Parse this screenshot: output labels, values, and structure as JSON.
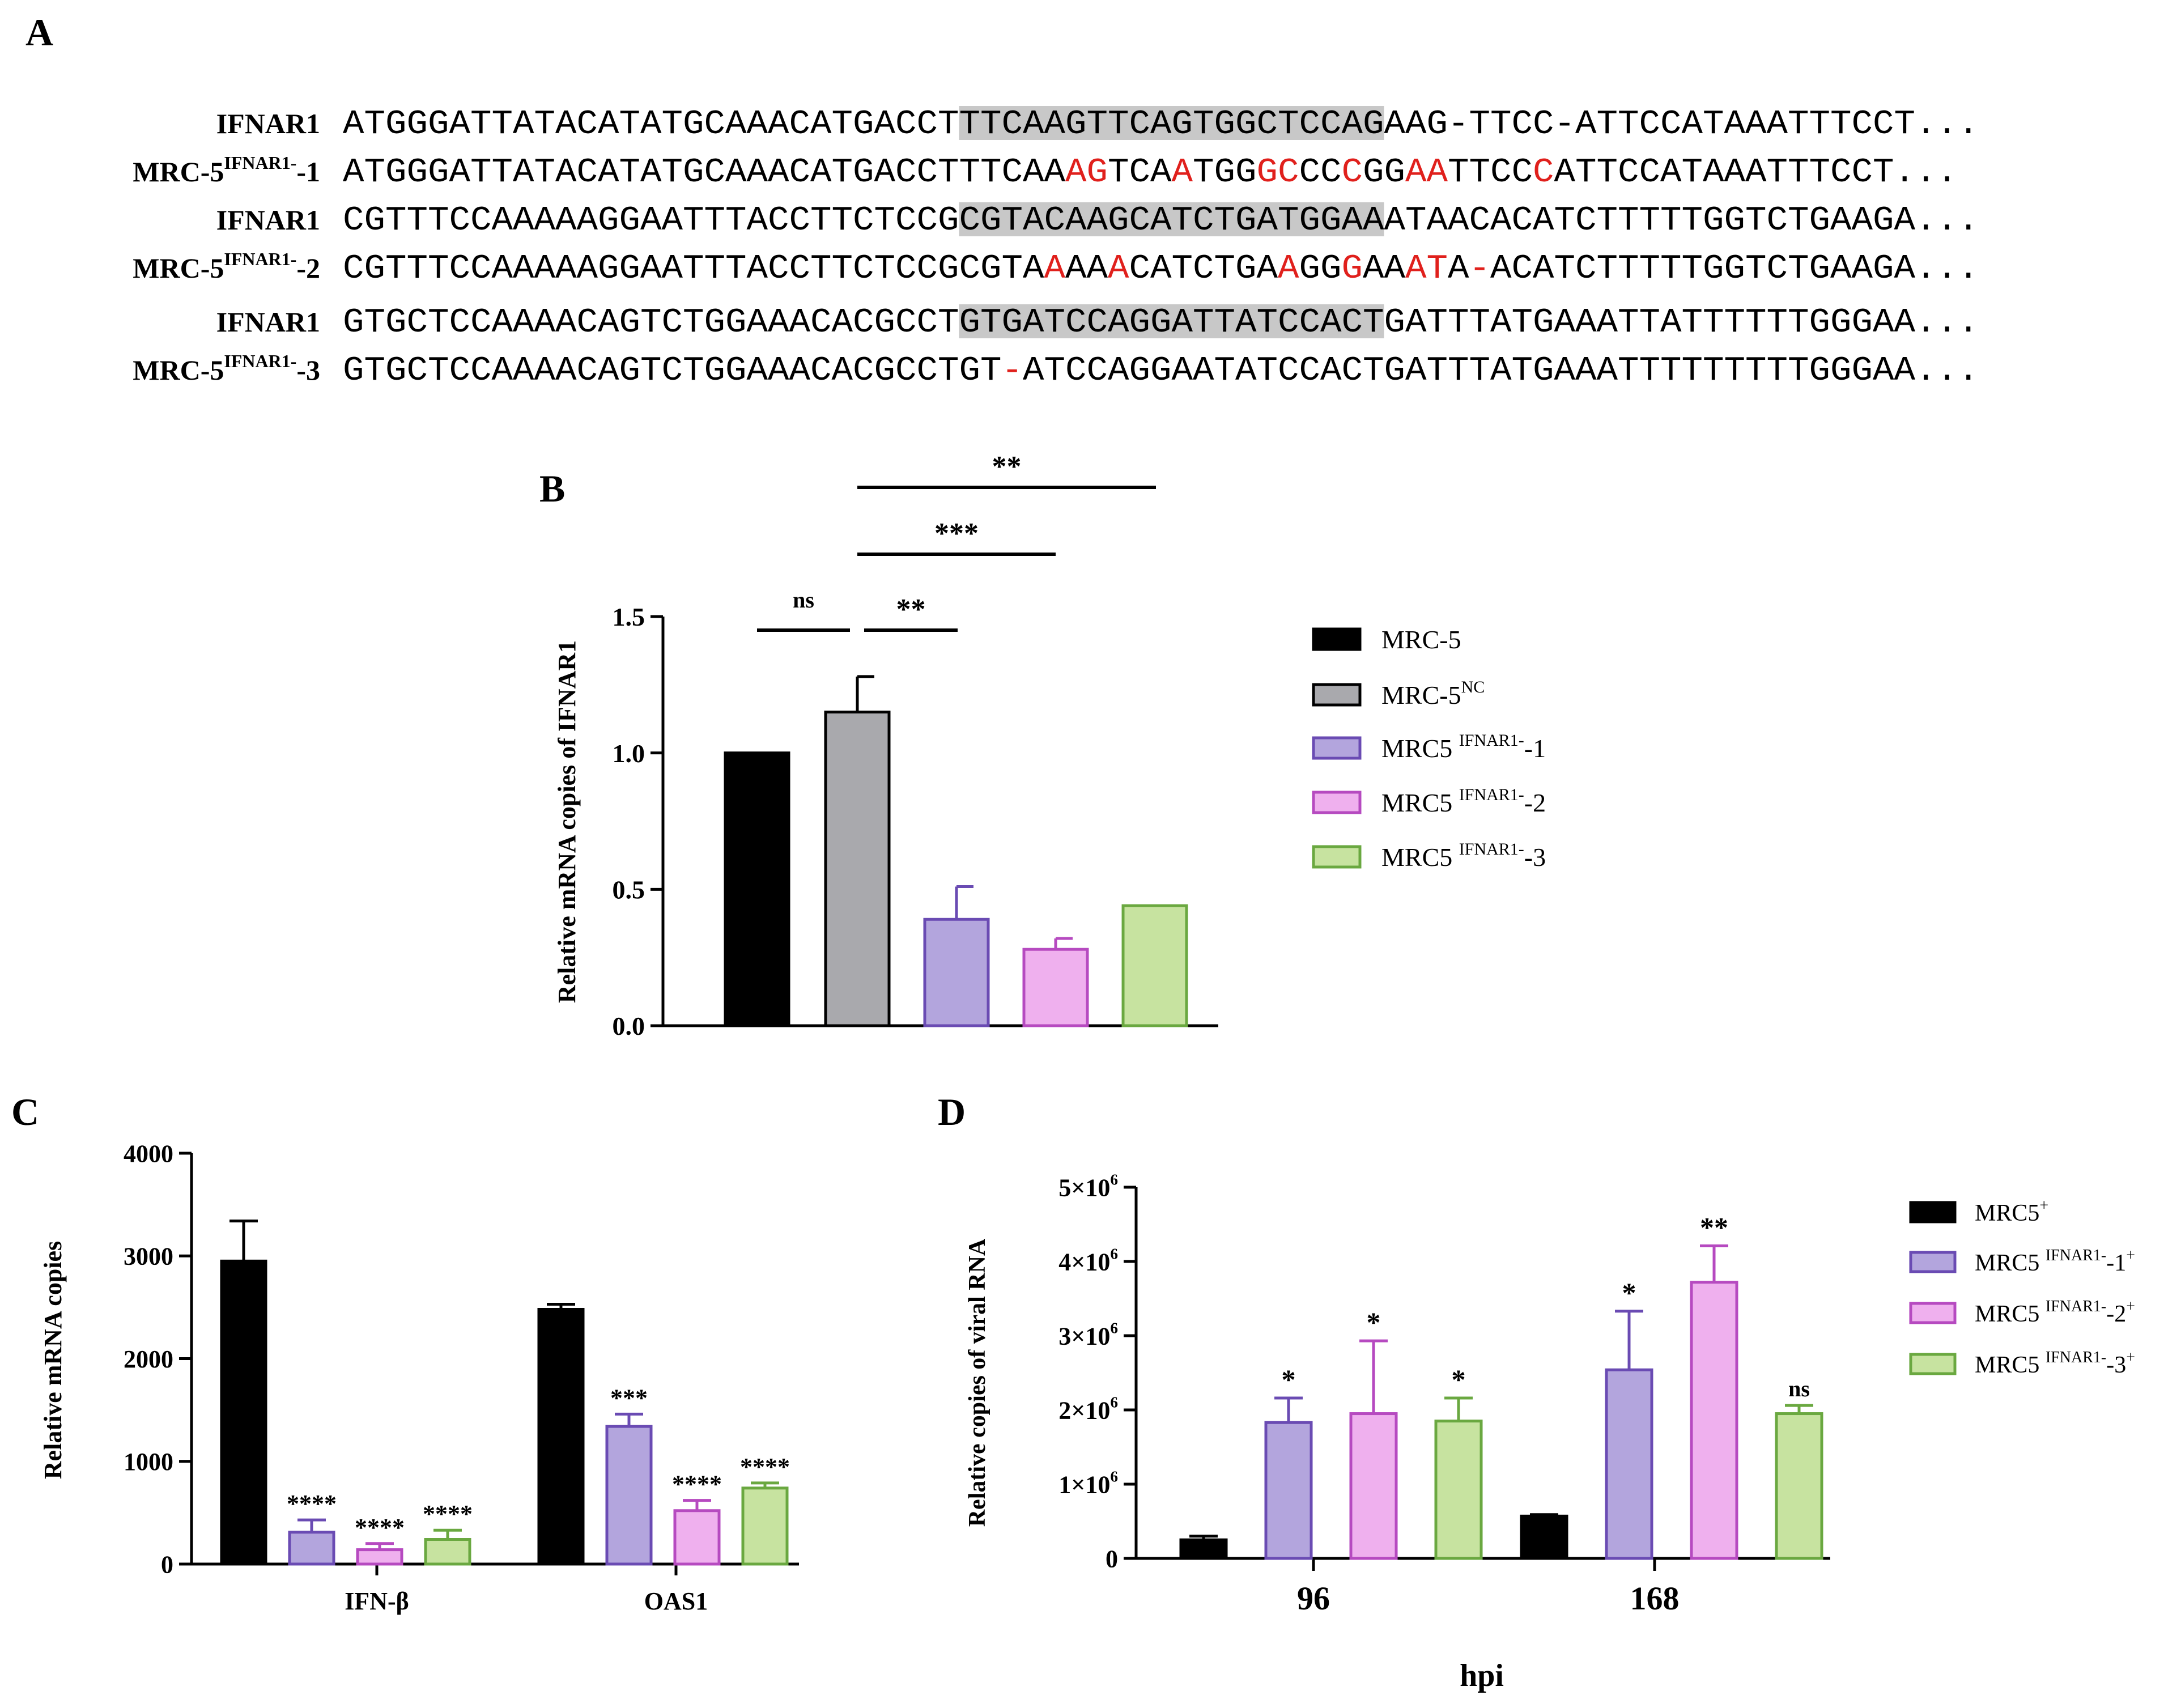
{
  "panel_letters": {
    "A": "A",
    "B": "B",
    "C": "C",
    "D": "D"
  },
  "colors": {
    "black": "#000000",
    "grey": "#a9a9ad",
    "purple_fill": "#b3a5dd",
    "purple_edge": "#6a4bb3",
    "pink_fill": "#efb0ee",
    "pink_edge": "#b64ac0",
    "green_fill": "#c7e3a0",
    "green_edge": "#6aa840",
    "mutation_red": "#e0201c",
    "highlight_grey": "#c8c8c8"
  },
  "sequences": [
    {
      "label": "IFNAR1",
      "label_sup": "",
      "label_suffix": "",
      "segments": [
        {
          "text": "ATGGGATTATACATATGCAAACATGACCT",
          "style": "normal"
        },
        {
          "text": "TTCAAGTTCAGTGGCTCCAG",
          "style": "highlight"
        },
        {
          "text": "AAG-TTCC-ATTCCATAAATTTCCT...",
          "style": "normal"
        }
      ]
    },
    {
      "label": "MRC-5",
      "label_sup": "IFNAR1-",
      "label_suffix": "-1",
      "segments": [
        {
          "text": "ATGGGATTATACATATGCAAACATGACCTTTCAA",
          "style": "normal"
        },
        {
          "text": "AG",
          "style": "red"
        },
        {
          "text": "TCA",
          "style": "normal"
        },
        {
          "text": "A",
          "style": "red"
        },
        {
          "text": "TGG",
          "style": "normal"
        },
        {
          "text": "GC",
          "style": "red"
        },
        {
          "text": "CC",
          "style": "normal"
        },
        {
          "text": "C",
          "style": "red"
        },
        {
          "text": "GG",
          "style": "normal"
        },
        {
          "text": "AA",
          "style": "red"
        },
        {
          "text": "TTCC",
          "style": "normal"
        },
        {
          "text": "C",
          "style": "red"
        },
        {
          "text": "ATTCCATAAATTTCCT...",
          "style": "normal"
        }
      ]
    },
    {
      "label": "IFNAR1",
      "label_sup": "",
      "label_suffix": "",
      "segments": [
        {
          "text": "CGTTTCCAAAAAGGAATTTACCTTCTCCG",
          "style": "normal"
        },
        {
          "text": "CGTACAAGCATCTGATGGAA",
          "style": "highlight"
        },
        {
          "text": "ATAACACATCTTTTTGGTCTGAAGA...",
          "style": "normal"
        }
      ]
    },
    {
      "label": "MRC-5",
      "label_sup": "IFNAR1-",
      "label_suffix": "-2",
      "segments": [
        {
          "text": "CGTTTCCAAAAAGGAATTTACCTTCTCCGCGTA",
          "style": "normal"
        },
        {
          "text": "A",
          "style": "red"
        },
        {
          "text": "AA",
          "style": "normal"
        },
        {
          "text": "A",
          "style": "red"
        },
        {
          "text": "CATCTGA",
          "style": "normal"
        },
        {
          "text": "A",
          "style": "red"
        },
        {
          "text": "GG",
          "style": "normal"
        },
        {
          "text": "G",
          "style": "red"
        },
        {
          "text": "AA",
          "style": "normal"
        },
        {
          "text": "AT",
          "style": "red"
        },
        {
          "text": "A",
          "style": "normal"
        },
        {
          "text": "-",
          "style": "red"
        },
        {
          "text": "ACATCTTTTTGGTCTGAAGA...",
          "style": "normal"
        }
      ]
    },
    {
      "label": "IFNAR1",
      "label_sup": "",
      "label_suffix": "",
      "segments": [
        {
          "text": "GTGCTCCAAAACAGTCTGGAAACACGCCT",
          "style": "normal"
        },
        {
          "text": "GTGATCCAGGATTATCCACT",
          "style": "highlight"
        },
        {
          "text": "GATTTATGAAATTATTTTTTGGGAA...",
          "style": "normal"
        }
      ]
    },
    {
      "label": "MRC-5",
      "label_sup": "IFNAR1-",
      "label_suffix": "-3",
      "segments": [
        {
          "text": "GTGCTCCAAAACAGTCTGGAAACACGCCTGT",
          "style": "normal"
        },
        {
          "text": "-",
          "style": "red"
        },
        {
          "text": "ATCCAGGAATATCCACTGATTTATGAAATTTTTTTTTGGGAA...",
          "style": "normal"
        }
      ]
    }
  ],
  "chart_data": [
    {
      "panel": "B",
      "type": "bar",
      "ylabel": "Relative mRNA copies of IFNAR1",
      "ylim": [
        0,
        1.5
      ],
      "ytick_labels": [
        "0.0",
        "0.5",
        "1.0",
        "1.5"
      ],
      "yticks": [
        0,
        0.5,
        1.0,
        1.5
      ],
      "categories": [
        "MRC-5",
        "MRC-5NC",
        "MRC5 IFNAR1--1",
        "MRC5 IFNAR1--2",
        "MRC5 IFNAR1--3"
      ],
      "values": [
        1.0,
        1.15,
        0.39,
        0.28,
        0.44
      ],
      "errors": [
        0,
        0.13,
        0.12,
        0.04,
        0.005
      ],
      "significance": [
        {
          "from": 0,
          "to": 1,
          "label": "ns"
        },
        {
          "from": 1,
          "to": 2,
          "label": "**"
        },
        {
          "from": 1,
          "to": 3,
          "label": "***"
        },
        {
          "from": 1,
          "to": 4,
          "label": "**"
        }
      ],
      "legend": [
        {
          "text": "MRC-5",
          "sup": "",
          "suffix": ""
        },
        {
          "text": "MRC-5",
          "sup": "NC",
          "suffix": ""
        },
        {
          "text": "MRC5 ",
          "sup": "IFNAR1-",
          "suffix": "-1"
        },
        {
          "text": "MRC5 ",
          "sup": "IFNAR1-",
          "suffix": "-2"
        },
        {
          "text": "MRC5 ",
          "sup": "IFNAR1-",
          "suffix": "-3"
        }
      ],
      "legend_position": "right"
    },
    {
      "panel": "C",
      "type": "bar",
      "ylabel": "Relative mRNA copies",
      "ylim": [
        0,
        4000
      ],
      "yticks": [
        0,
        1000,
        2000,
        3000,
        4000
      ],
      "ytick_labels": [
        "0",
        "1000",
        "2000",
        "3000",
        "4000"
      ],
      "categories": [
        "IFN-β",
        "OAS1"
      ],
      "series": [
        {
          "values": [
            2950,
            2480
          ],
          "errors": [
            390,
            50
          ],
          "stars": [
            "",
            ""
          ]
        },
        {
          "values": [
            310,
            1340
          ],
          "errors": [
            120,
            120
          ],
          "stars": [
            "****",
            "***"
          ]
        },
        {
          "values": [
            140,
            520
          ],
          "errors": [
            60,
            100
          ],
          "stars": [
            "****",
            "****"
          ]
        },
        {
          "values": [
            240,
            740
          ],
          "errors": [
            90,
            50
          ],
          "stars": [
            "****",
            "****"
          ]
        }
      ]
    },
    {
      "panel": "D",
      "type": "bar",
      "xlabel": "hpi",
      "ylabel": "Relative copies of viral RNA",
      "ylim": [
        0,
        5000000
      ],
      "yticks": [
        0,
        1000000,
        2000000,
        3000000,
        4000000,
        5000000
      ],
      "ytick_labels": [
        "0",
        "1×10",
        "2×10",
        "3×10",
        "4×10",
        "5×10"
      ],
      "ytick_exp": [
        "",
        "6",
        "6",
        "6",
        "6",
        "6"
      ],
      "categories": [
        "96",
        "168"
      ],
      "series": [
        {
          "values": [
            250000,
            570000
          ],
          "errors": [
            50000,
            20000
          ],
          "stars": [
            "",
            ""
          ]
        },
        {
          "values": [
            1830000,
            2540000
          ],
          "errors": [
            330000,
            790000
          ],
          "stars": [
            "*",
            "*"
          ]
        },
        {
          "values": [
            1950000,
            3720000
          ],
          "errors": [
            980000,
            490000
          ],
          "stars": [
            "*",
            "**"
          ]
        },
        {
          "values": [
            1850000,
            1950000
          ],
          "errors": [
            310000,
            110000
          ],
          "stars": [
            "*",
            "ns"
          ]
        }
      ],
      "legend": [
        {
          "text": "MRC5",
          "sup": "+",
          "suffix": "",
          "sup2": ""
        },
        {
          "text": "MRC5 ",
          "sup": "IFNAR1-",
          "suffix": "-1",
          "sup2": "+"
        },
        {
          "text": "MRC5 ",
          "sup": "IFNAR1-",
          "suffix": "-2",
          "sup2": "+"
        },
        {
          "text": "MRC5 ",
          "sup": "IFNAR1-",
          "suffix": "-3",
          "sup2": "+"
        }
      ],
      "legend_position": "right"
    }
  ]
}
